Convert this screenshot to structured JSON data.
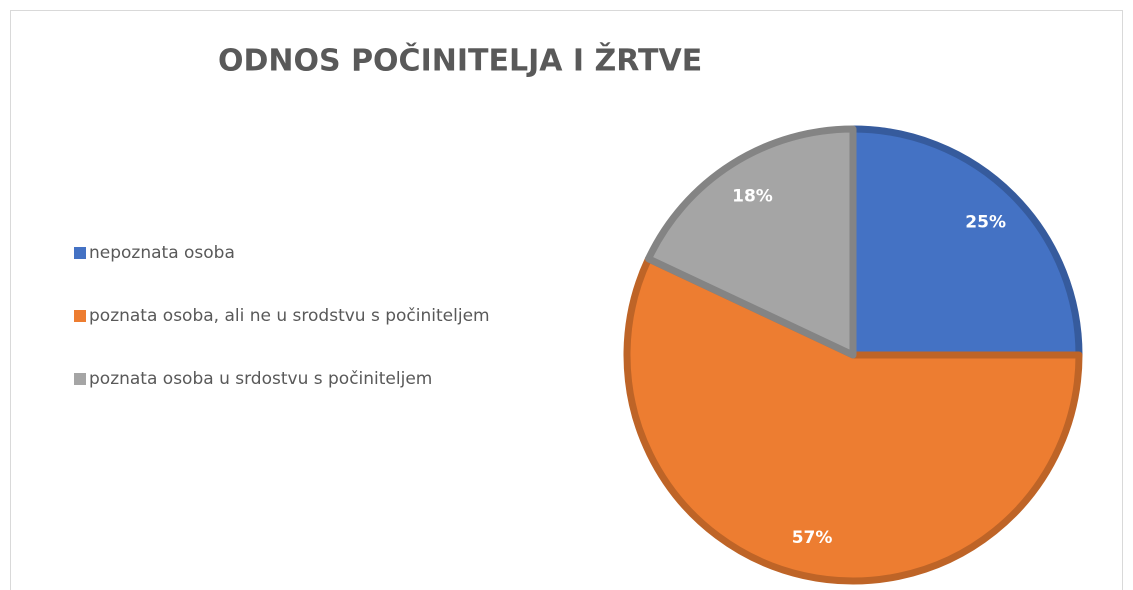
{
  "chart_data": {
    "type": "pie",
    "title": "ODNOS POČINITELJA I ŽRTVE",
    "categories": [
      "nepoznata osoba",
      "poznata osoba, ali ne u srodstvu s počiniteljem",
      "poznata osoba u srdostvu s počiniteljem"
    ],
    "values": [
      25,
      57,
      18
    ],
    "value_labels": [
      "25%",
      "57%",
      "18%"
    ],
    "colors": [
      "#4472c4",
      "#ed7d31",
      "#a5a5a5"
    ],
    "legend": "left"
  }
}
